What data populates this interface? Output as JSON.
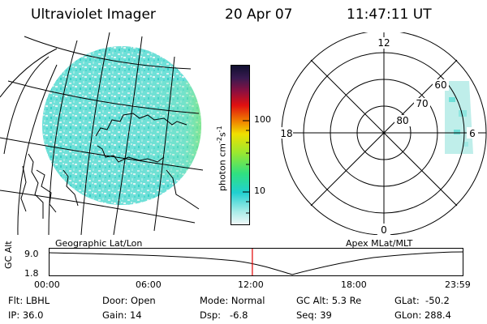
{
  "header": {
    "instrument": "Ultraviolet Imager",
    "date": "20 Apr 07",
    "time": "11:47:11 UT"
  },
  "colorbar": {
    "unit_prefix": "photon cm",
    "unit_exp1": "-2",
    "unit_mid": "s",
    "unit_exp2": "-1",
    "ticks": [
      "100",
      "10"
    ]
  },
  "left_map": {
    "label": "Geographic Lat/Lon"
  },
  "polar": {
    "label": "Apex MLat/MLT",
    "mlt_labels": {
      "top": "12",
      "left": "18",
      "right": "6",
      "bottom": "0"
    },
    "lat_labels": [
      "60",
      "70",
      "80"
    ]
  },
  "timeline": {
    "axis_label": "GC Alt",
    "y_ticks": [
      "9.0",
      "1.8"
    ],
    "x_ticks": [
      "00:00",
      "06:00",
      "12:00",
      "18:00",
      "23:59"
    ],
    "current_time_fraction": 0.49
  },
  "status": {
    "flt": "Flt: LBHL",
    "ip": "IP: 36.0",
    "door": "Door: Open",
    "gain": "Gain: 14",
    "mode": "Mode: Normal",
    "dsp": "Dsp:   -6.8",
    "gc_alt": "GC Alt: 5.3 Re",
    "seq": "Seq: 39",
    "glat": "GLat:  -50.2",
    "glon": "GLon: 288.4"
  }
}
